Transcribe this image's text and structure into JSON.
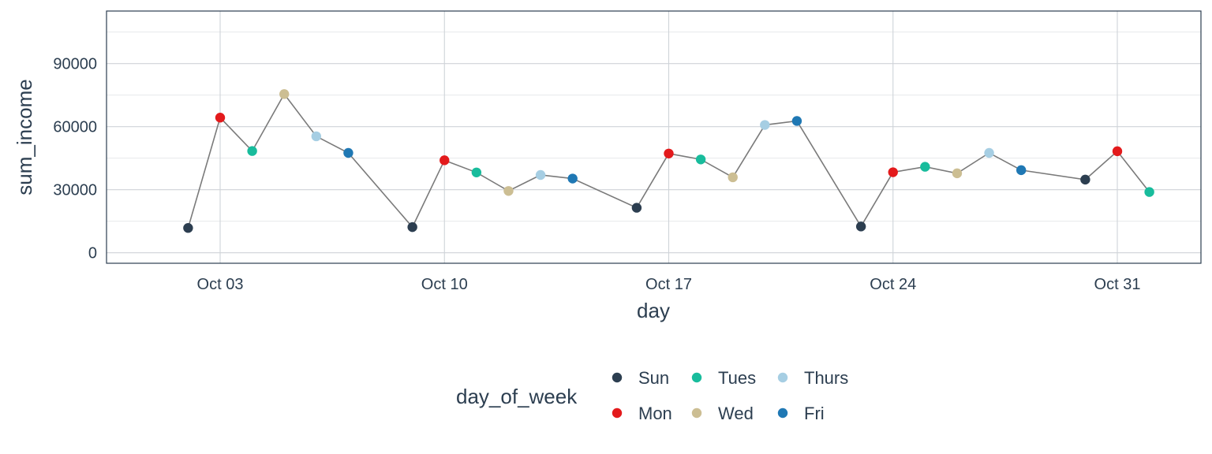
{
  "chart_data": {
    "type": "line",
    "xlabel": "day",
    "ylabel": "sum_income",
    "x_range": [
      "2022-09-28",
      "2022-11-01"
    ],
    "ylim": [
      -5000,
      115000
    ],
    "y_ticks": [
      0,
      30000,
      60000,
      90000
    ],
    "x_ticks": [
      {
        "date": "2022-10-03",
        "label": "Oct 03"
      },
      {
        "date": "2022-10-10",
        "label": "Oct 10"
      },
      {
        "date": "2022-10-17",
        "label": "Oct 17"
      },
      {
        "date": "2022-10-24",
        "label": "Oct 24"
      },
      {
        "date": "2022-10-31",
        "label": "Oct 31"
      }
    ],
    "grid": true,
    "line_color": "#7a7a7a",
    "legend": {
      "title": "day_of_week",
      "position": "bottom",
      "entries": [
        {
          "label": "Sun",
          "color": "#2c3e50"
        },
        {
          "label": "Mon",
          "color": "#e31a1c"
        },
        {
          "label": "Tues",
          "color": "#18bc9c"
        },
        {
          "label": "Wed",
          "color": "#ccbe93"
        },
        {
          "label": "Thurs",
          "color": "#a6cee3"
        },
        {
          "label": "Fri",
          "color": "#1f78b4"
        }
      ]
    },
    "points": [
      {
        "date": "2022-10-02",
        "value": 11800,
        "day_of_week": "Sun"
      },
      {
        "date": "2022-10-03",
        "value": 64300,
        "day_of_week": "Mon"
      },
      {
        "date": "2022-10-04",
        "value": 48400,
        "day_of_week": "Tues"
      },
      {
        "date": "2022-10-05",
        "value": 75500,
        "day_of_week": "Wed"
      },
      {
        "date": "2022-10-06",
        "value": 55400,
        "day_of_week": "Thurs"
      },
      {
        "date": "2022-10-07",
        "value": 47500,
        "day_of_week": "Fri"
      },
      {
        "date": "2022-10-09",
        "value": 12200,
        "day_of_week": "Sun"
      },
      {
        "date": "2022-10-10",
        "value": 44000,
        "day_of_week": "Mon"
      },
      {
        "date": "2022-10-11",
        "value": 38200,
        "day_of_week": "Tues"
      },
      {
        "date": "2022-10-12",
        "value": 29400,
        "day_of_week": "Wed"
      },
      {
        "date": "2022-10-13",
        "value": 37000,
        "day_of_week": "Thurs"
      },
      {
        "date": "2022-10-14",
        "value": 35300,
        "day_of_week": "Fri"
      },
      {
        "date": "2022-10-16",
        "value": 21400,
        "day_of_week": "Sun"
      },
      {
        "date": "2022-10-17",
        "value": 47200,
        "day_of_week": "Mon"
      },
      {
        "date": "2022-10-18",
        "value": 44400,
        "day_of_week": "Tues"
      },
      {
        "date": "2022-10-19",
        "value": 35900,
        "day_of_week": "Wed"
      },
      {
        "date": "2022-10-20",
        "value": 60800,
        "day_of_week": "Thurs"
      },
      {
        "date": "2022-10-21",
        "value": 62700,
        "day_of_week": "Fri"
      },
      {
        "date": "2022-10-23",
        "value": 12500,
        "day_of_week": "Sun"
      },
      {
        "date": "2022-10-24",
        "value": 38300,
        "day_of_week": "Mon"
      },
      {
        "date": "2022-10-25",
        "value": 40900,
        "day_of_week": "Tues"
      },
      {
        "date": "2022-10-26",
        "value": 37800,
        "day_of_week": "Wed"
      },
      {
        "date": "2022-10-27",
        "value": 47500,
        "day_of_week": "Thurs"
      },
      {
        "date": "2022-10-28",
        "value": 39300,
        "day_of_week": "Fri"
      },
      {
        "date": "2022-10-30",
        "value": 34800,
        "day_of_week": "Sun"
      },
      {
        "date": "2022-10-31",
        "value": 48300,
        "day_of_week": "Mon"
      },
      {
        "date": "2022-11-01",
        "value": 28900,
        "day_of_week": "Tues"
      }
    ]
  }
}
